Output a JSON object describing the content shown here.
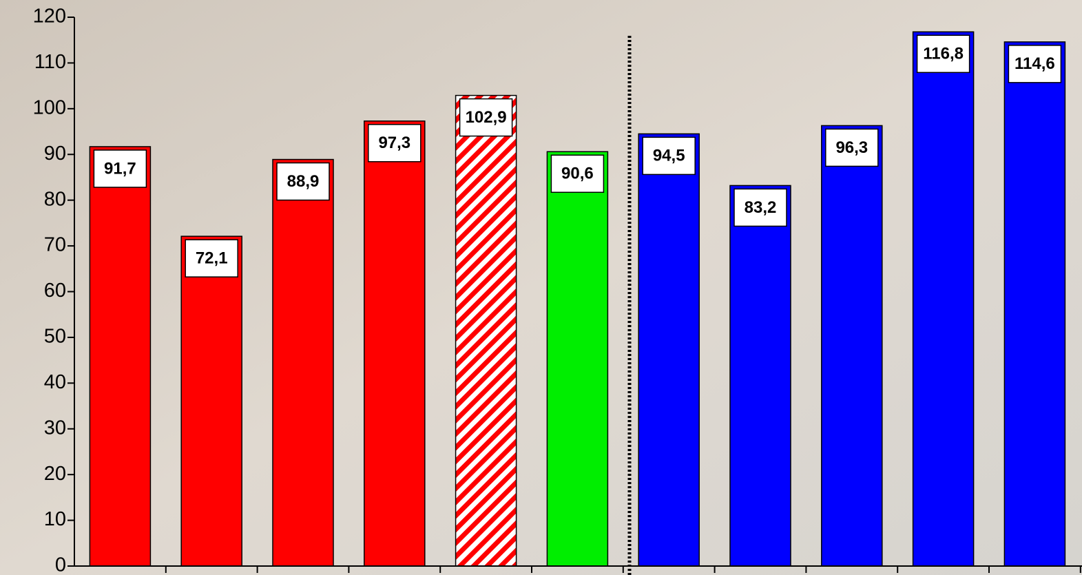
{
  "chart_data": {
    "type": "bar",
    "categories": [
      null,
      null,
      null,
      null,
      null,
      null,
      null,
      null,
      null,
      null,
      null
    ],
    "values": [
      91.7,
      72.1,
      88.9,
      97.3,
      102.9,
      90.6,
      94.5,
      83.2,
      96.3,
      116.8,
      114.6
    ],
    "value_labels": [
      "91,7",
      "72,1",
      "88,9",
      "97,3",
      "102,9",
      "90,6",
      "94,5",
      "83,2",
      "96,3",
      "116,8",
      "114,6"
    ],
    "colors": [
      "#ff0000",
      "#ff0000",
      "#ff0000",
      "#ff0000",
      "#ff0000",
      "#00ee00",
      "#0000ff",
      "#0000ff",
      "#0000ff",
      "#0000ff",
      "#0000ff"
    ],
    "hatched": [
      false,
      false,
      false,
      false,
      true,
      false,
      false,
      false,
      false,
      false,
      false
    ],
    "ylim": [
      0,
      120
    ],
    "yticks": [
      0,
      10,
      20,
      30,
      40,
      50,
      60,
      70,
      80,
      90,
      100,
      110,
      120
    ]
  }
}
